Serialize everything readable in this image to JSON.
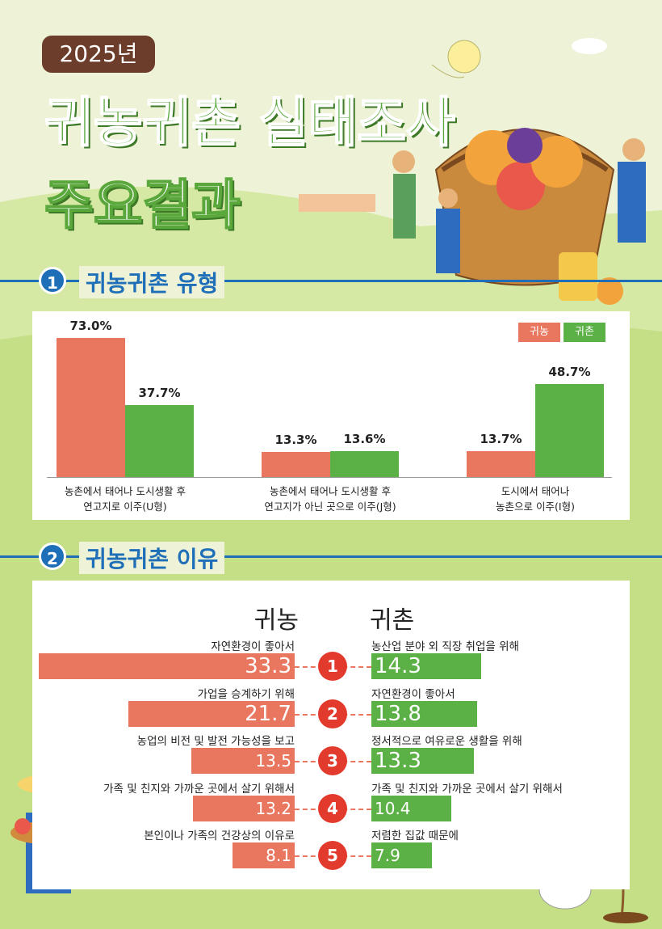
{
  "header": {
    "badge": "2025년",
    "title": "귀농귀촌 실태조사",
    "subtitle": "주요결과"
  },
  "sections": [
    {
      "number": 1,
      "title": "귀농귀촌 유형"
    },
    {
      "number": 2,
      "title": "귀농귀촌 이유"
    }
  ],
  "chart_data": [
    {
      "type": "bar",
      "categories": [
        "농촌에서 태어나 도시생활 후\n연고지로 이주(U형)",
        "농촌에서 태어나 도시생활 후\n연고지가 아닌 곳으로 이주(J형)",
        "도시에서 태어나\n농촌으로 이주(I형)"
      ],
      "series": [
        {
          "name": "귀농",
          "color": "#e9775f",
          "values": [
            73.0,
            13.3,
            13.7
          ],
          "value_labels": [
            "73.0%",
            "13.3%",
            "13.7%"
          ]
        },
        {
          "name": "귀촌",
          "color": "#5cb146",
          "values": [
            37.7,
            13.6,
            48.7
          ],
          "value_labels": [
            "37.7%",
            "13.6%",
            "48.7%"
          ]
        }
      ],
      "ylim": [
        0,
        80
      ],
      "legend": "top-right"
    },
    {
      "type": "butterfly",
      "ranks": [
        1,
        2,
        3,
        4,
        5
      ],
      "xlim": [
        0,
        35
      ],
      "series": [
        {
          "name": "귀농",
          "color": "#e9775f",
          "categories": [
            "자연환경이 좋아서",
            "가업을 승계하기 위해",
            "농업의 비전 및 발전 가능성을 보고",
            "가족 및 친지와 가까운 곳에서 살기 위해서",
            "본인이나 가족의 건강상의 이유로"
          ],
          "values": [
            33.3,
            21.7,
            13.5,
            13.2,
            8.1
          ]
        },
        {
          "name": "귀촌",
          "color": "#5cb146",
          "categories": [
            "농산업 분야 외 직장 취업을 위해",
            "자연환경이 좋아서",
            "정서적으로 여유로운 생활을 위해",
            "가족 및 친지와 가까운 곳에서 살기 위해서",
            "저렴한 집값 때문에"
          ],
          "values": [
            14.3,
            13.8,
            13.3,
            10.4,
            7.9
          ]
        }
      ]
    }
  ]
}
